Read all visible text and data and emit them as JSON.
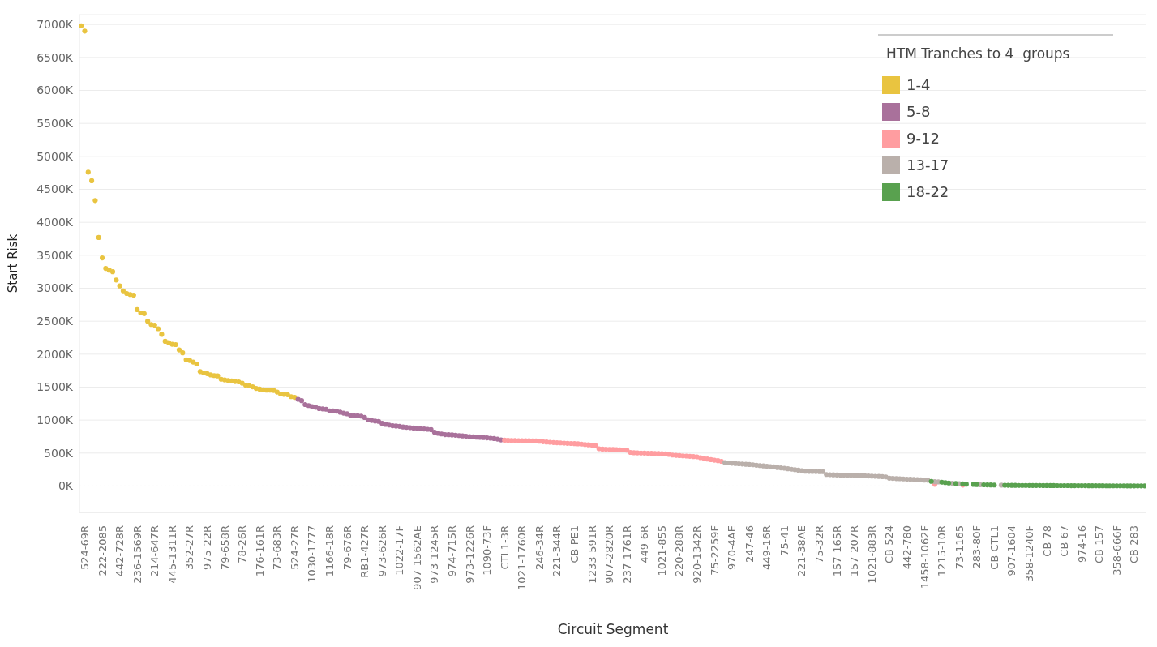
{
  "chart_data": {
    "type": "scatter",
    "xlabel": "Circuit Segment",
    "ylabel": "Start Risk",
    "legend_title": "HTM Tranches to 4  groups",
    "legend": "top right",
    "grid": "y",
    "marker": "circle",
    "ylim": [
      -400,
      7150
    ],
    "yticks": [
      {
        "value": 0,
        "label": "0K"
      },
      {
        "value": 500,
        "label": "500K"
      },
      {
        "value": 1000,
        "label": "1000K"
      },
      {
        "value": 1500,
        "label": "1500K"
      },
      {
        "value": 2000,
        "label": "2000K"
      },
      {
        "value": 2500,
        "label": "2500K"
      },
      {
        "value": 3000,
        "label": "3000K"
      },
      {
        "value": 3500,
        "label": "3500K"
      },
      {
        "value": 4000,
        "label": "4000K"
      },
      {
        "value": 4500,
        "label": "4500K"
      },
      {
        "value": 5000,
        "label": "5000K"
      },
      {
        "value": 5500,
        "label": "5500K"
      },
      {
        "value": 6000,
        "label": "6000K"
      },
      {
        "value": 6500,
        "label": "6500K"
      },
      {
        "value": 7000,
        "label": "7000K"
      }
    ],
    "ref_lines": [
      {
        "axis": "y",
        "value": 0,
        "color": "#bbbbbb",
        "line_style": "dotted"
      }
    ],
    "categories": [
      null,
      "524-69R",
      null,
      null,
      null,
      null,
      "222-2085",
      null,
      null,
      null,
      null,
      "442-728R",
      null,
      null,
      null,
      null,
      "236-1569R",
      null,
      null,
      null,
      null,
      "214-647R",
      null,
      null,
      null,
      null,
      "445-1311R",
      null,
      null,
      null,
      null,
      "352-27R",
      null,
      null,
      null,
      null,
      "975-22R",
      null,
      null,
      null,
      null,
      "79-658R",
      null,
      null,
      null,
      null,
      "78-26R",
      null,
      null,
      null,
      null,
      "176-161R",
      null,
      null,
      null,
      null,
      "73-683R",
      null,
      null,
      null,
      null,
      "524-27R",
      null,
      null,
      null,
      null,
      "1030-1777",
      null,
      null,
      null,
      null,
      "1166-18R",
      null,
      null,
      null,
      null,
      "79-676R",
      null,
      null,
      null,
      null,
      "RB1-427R",
      null,
      null,
      null,
      null,
      "973-626R",
      null,
      null,
      null,
      null,
      "1022-17F",
      null,
      null,
      null,
      null,
      "907-1562AE",
      null,
      null,
      null,
      null,
      "973-1245R",
      null,
      null,
      null,
      null,
      "974-715R",
      null,
      null,
      null,
      null,
      "973-1226R",
      null,
      null,
      null,
      null,
      "1090-73F",
      null,
      null,
      null,
      null,
      "CTL1-3R",
      null,
      null,
      null,
      null,
      "1021-1760R",
      null,
      null,
      null,
      null,
      "246-34R",
      null,
      null,
      null,
      null,
      "221-344R",
      null,
      null,
      null,
      null,
      "CB PE1",
      null,
      null,
      null,
      null,
      "1233-591R",
      null,
      null,
      null,
      null,
      "907-2820R",
      null,
      null,
      null,
      null,
      "237-1761R",
      null,
      null,
      null,
      null,
      "449-6R",
      null,
      null,
      null,
      null,
      "1021-855",
      null,
      null,
      null,
      null,
      "220-288R",
      null,
      null,
      null,
      null,
      "920-1342R",
      null,
      null,
      null,
      null,
      "75-2259F",
      null,
      null,
      null,
      null,
      "970-4AE",
      null,
      null,
      null,
      null,
      "247-46",
      null,
      null,
      null,
      null,
      "449-16R",
      null,
      null,
      null,
      null,
      "75-41",
      null,
      null,
      null,
      null,
      "221-38AE",
      null,
      null,
      null,
      null,
      "75-32R",
      null,
      null,
      null,
      null,
      "157-165R",
      null,
      null,
      null,
      null,
      "157-207R",
      null,
      null,
      null,
      null,
      "1021-883R",
      null,
      null,
      null,
      null,
      "CB 524",
      null,
      null,
      null,
      null,
      "442-780",
      null,
      null,
      null,
      null,
      "1458-1062F",
      null,
      null,
      null,
      null,
      "1215-10R",
      null,
      null,
      null,
      null,
      "73-1165",
      null,
      null,
      null,
      null,
      "283-80F",
      null,
      null,
      null,
      null,
      "CB CTL1",
      null,
      null,
      null,
      null,
      "907-1604",
      null,
      null,
      null,
      null,
      "358-1240F",
      null,
      null,
      null,
      null,
      "CB 78",
      null,
      null,
      null,
      null,
      "CB 67",
      null,
      null,
      null,
      null,
      "974-16",
      null,
      null,
      null,
      null,
      "CB 157",
      null,
      null,
      null,
      null,
      "358-666F",
      null,
      null,
      null,
      null,
      "CB 283",
      null,
      null,
      null
    ],
    "series": [
      {
        "name": "1-4",
        "color": "#e9c440",
        "values": [
          6980,
          6900,
          4760,
          4630,
          4330,
          3770,
          3460,
          3300,
          3275,
          3250,
          3125,
          3035,
          2960,
          2920,
          2905,
          2895,
          2675,
          2625,
          2615,
          2500,
          2450,
          2440,
          2385,
          2300,
          2195,
          2175,
          2150,
          2145,
          2065,
          2020,
          1915,
          1905,
          1880,
          1850,
          1735,
          1715,
          1705,
          1685,
          1675,
          1670,
          1620,
          1610,
          1600,
          1595,
          1585,
          1580,
          1560,
          1530,
          1520,
          1505,
          1480,
          1470,
          1460,
          1455,
          1455,
          1450,
          1425,
          1395,
          1390,
          1385,
          1355,
          1345,
          null,
          null,
          null,
          null,
          null,
          null,
          null,
          null,
          null,
          null,
          null,
          null,
          null,
          null,
          null,
          null,
          null,
          null,
          null,
          null,
          null,
          null,
          null,
          null,
          null,
          null,
          null,
          null,
          null,
          null,
          null,
          null,
          null,
          null,
          null,
          null,
          null,
          null,
          null,
          null,
          null,
          null,
          null,
          null,
          null,
          null,
          null,
          null,
          null,
          null,
          null,
          null,
          null,
          null,
          null,
          null,
          null,
          null,
          null,
          null,
          null,
          null,
          null,
          null,
          null,
          null,
          null,
          null,
          null,
          null,
          null,
          null,
          null,
          null,
          null,
          null,
          null,
          null,
          null,
          null,
          null,
          null,
          null,
          null,
          null,
          null,
          null,
          null,
          null,
          null,
          null,
          null,
          null,
          null,
          null,
          null,
          null,
          null,
          null,
          null,
          null,
          null,
          null,
          null,
          null,
          null,
          null,
          null,
          null,
          null,
          null,
          null,
          null,
          null,
          null,
          null,
          null,
          null,
          null,
          null,
          null,
          null,
          null,
          null,
          null,
          null,
          null,
          null,
          null,
          null,
          null,
          null,
          null,
          null,
          null,
          null,
          null,
          null,
          null,
          null,
          null,
          null,
          null,
          null,
          null,
          null,
          null,
          null,
          null,
          null,
          null,
          null,
          null,
          null,
          null,
          null,
          null,
          null,
          null,
          null,
          null,
          null,
          null,
          null,
          null,
          null,
          null,
          null,
          null,
          null,
          null,
          null,
          null,
          null,
          null,
          null,
          null,
          null,
          null,
          null,
          null,
          null,
          null,
          null,
          null,
          null,
          null,
          null,
          null,
          null,
          null,
          null,
          null,
          null,
          null,
          null,
          null,
          null,
          null,
          null,
          null,
          null,
          null,
          null,
          null,
          null,
          null,
          null,
          null,
          null,
          null,
          null,
          null,
          null,
          null,
          null,
          null,
          null,
          null,
          null,
          null,
          null,
          null,
          null,
          null,
          null,
          null,
          null,
          null,
          null,
          null,
          null,
          null,
          null,
          null,
          null,
          null,
          null,
          null,
          null,
          null,
          null,
          null
        ]
      },
      {
        "name": "5-8",
        "color": "#a9719b",
        "values": [
          null,
          null,
          null,
          null,
          null,
          null,
          null,
          null,
          null,
          null,
          null,
          null,
          null,
          null,
          null,
          null,
          null,
          null,
          null,
          null,
          null,
          null,
          null,
          null,
          null,
          null,
          null,
          null,
          null,
          null,
          null,
          null,
          null,
          null,
          null,
          null,
          null,
          null,
          null,
          null,
          null,
          null,
          null,
          null,
          null,
          null,
          null,
          null,
          null,
          null,
          null,
          null,
          null,
          null,
          null,
          null,
          null,
          null,
          null,
          null,
          null,
          null,
          1315,
          1295,
          1235,
          1220,
          1205,
          1195,
          1175,
          1170,
          1165,
          1140,
          1140,
          1135,
          1120,
          1105,
          1095,
          1070,
          1065,
          1065,
          1060,
          1040,
          1005,
          995,
          985,
          980,
          950,
          935,
          925,
          915,
          910,
          905,
          895,
          890,
          885,
          880,
          875,
          870,
          865,
          860,
          855,
          815,
          800,
          790,
          780,
          778,
          775,
          770,
          765,
          760,
          755,
          750,
          745,
          742,
          738,
          735,
          730,
          725,
          720,
          712,
          700,
          null,
          null,
          null,
          null,
          null,
          null,
          null,
          null,
          null,
          null,
          null,
          null,
          null,
          null,
          null,
          null,
          null,
          null,
          null,
          null,
          null,
          null,
          null,
          null,
          null,
          null,
          null,
          null,
          null,
          null,
          null,
          null,
          null,
          null,
          null,
          null,
          null,
          null,
          null,
          null,
          null,
          null,
          null,
          null,
          null,
          null,
          null,
          null,
          null,
          null,
          null,
          null,
          null,
          null,
          null,
          null,
          null,
          null,
          null,
          null,
          null,
          null,
          null,
          null,
          null,
          null,
          null,
          null,
          null,
          null,
          null,
          null,
          null,
          null,
          null,
          null,
          null,
          null,
          null,
          null,
          null,
          null,
          null,
          null,
          null,
          null,
          null,
          null,
          null,
          null,
          null,
          null,
          null,
          null,
          null,
          null,
          null,
          null,
          null,
          null,
          null,
          null,
          null,
          null,
          null,
          null,
          null,
          null,
          null,
          null,
          null,
          null,
          null,
          null,
          null,
          null,
          null,
          null,
          null,
          null,
          null,
          null,
          null,
          null,
          null,
          null,
          null,
          null,
          null,
          null,
          null,
          null,
          null,
          null,
          null,
          null,
          null,
          null,
          null,
          null,
          null,
          null,
          null,
          null,
          null,
          null,
          null,
          null,
          null,
          null,
          null,
          null,
          null,
          null,
          null,
          null,
          null,
          null,
          null,
          null,
          null,
          null,
          null,
          null,
          null,
          null,
          null,
          null,
          null,
          null,
          null,
          null,
          null,
          null,
          null,
          null,
          null,
          null,
          null,
          null,
          null,
          null,
          null,
          null
        ]
      },
      {
        "name": "9-12",
        "color": "#ff9da0",
        "values": [
          null,
          null,
          null,
          null,
          null,
          null,
          null,
          null,
          null,
          null,
          null,
          null,
          null,
          null,
          null,
          null,
          null,
          null,
          null,
          null,
          null,
          null,
          null,
          null,
          null,
          null,
          null,
          null,
          null,
          null,
          null,
          null,
          null,
          null,
          null,
          null,
          null,
          null,
          null,
          null,
          null,
          null,
          null,
          null,
          null,
          null,
          null,
          null,
          null,
          null,
          null,
          null,
          null,
          null,
          null,
          null,
          null,
          null,
          null,
          null,
          null,
          null,
          null,
          null,
          null,
          null,
          null,
          null,
          null,
          null,
          null,
          null,
          null,
          null,
          null,
          null,
          null,
          null,
          null,
          null,
          null,
          null,
          null,
          null,
          null,
          null,
          null,
          null,
          null,
          null,
          null,
          null,
          null,
          null,
          null,
          null,
          null,
          null,
          null,
          null,
          null,
          null,
          null,
          null,
          null,
          null,
          null,
          null,
          null,
          null,
          null,
          null,
          null,
          null,
          null,
          null,
          null,
          null,
          null,
          null,
          null,
          695,
          692,
          690,
          690,
          688,
          688,
          686,
          686,
          685,
          684,
          680,
          672,
          668,
          664,
          660,
          657,
          654,
          650,
          647,
          645,
          643,
          640,
          636,
          630,
          625,
          620,
          612,
          565,
          560,
          558,
          556,
          554,
          552,
          550,
          547,
          544,
          510,
          505,
          503,
          501,
          500,
          498,
          496,
          494,
          492,
          490,
          486,
          480,
          470,
          465,
          462,
          458,
          455,
          450,
          446,
          442,
          430,
          420,
          410,
          400,
          392,
          385,
          375,
          null,
          null,
          null,
          null,
          null,
          null,
          null,
          null,
          null,
          null,
          null,
          null,
          null,
          null,
          null,
          null,
          null,
          null,
          null,
          null,
          null,
          null,
          null,
          null,
          null,
          null,
          null,
          null,
          null,
          null,
          null,
          null,
          null,
          null,
          null,
          null,
          null,
          null,
          null,
          null,
          null,
          null,
          null,
          null,
          null,
          null,
          null,
          null,
          null,
          null,
          null,
          null,
          null,
          null,
          null,
          null,
          null,
          null,
          null,
          null,
          26,
          null,
          null,
          null,
          null,
          null,
          null,
          null,
          14,
          null,
          null,
          null,
          null,
          null,
          null,
          null,
          null,
          null,
          null,
          null,
          null,
          null,
          null,
          null,
          null,
          null,
          null,
          null,
          null,
          null,
          null,
          null,
          null,
          null,
          null,
          null,
          null,
          null,
          null,
          null,
          null,
          null,
          null,
          null,
          null,
          null,
          null,
          null,
          null,
          null,
          null,
          null,
          null,
          null,
          null,
          null,
          null,
          null,
          null,
          null,
          null
        ]
      },
      {
        "name": "13-17",
        "color": "#bab0ab",
        "values": [
          null,
          null,
          null,
          null,
          null,
          null,
          null,
          null,
          null,
          null,
          null,
          null,
          null,
          null,
          null,
          null,
          null,
          null,
          null,
          null,
          null,
          null,
          null,
          null,
          null,
          null,
          null,
          null,
          null,
          null,
          null,
          null,
          null,
          null,
          null,
          null,
          null,
          null,
          null,
          null,
          null,
          null,
          null,
          null,
          null,
          null,
          null,
          null,
          null,
          null,
          null,
          null,
          null,
          null,
          null,
          null,
          null,
          null,
          null,
          null,
          null,
          null,
          null,
          null,
          null,
          null,
          null,
          null,
          null,
          null,
          null,
          null,
          null,
          null,
          null,
          null,
          null,
          null,
          null,
          null,
          null,
          null,
          null,
          null,
          null,
          null,
          null,
          null,
          null,
          null,
          null,
          null,
          null,
          null,
          null,
          null,
          null,
          null,
          null,
          null,
          null,
          null,
          null,
          null,
          null,
          null,
          null,
          null,
          null,
          null,
          null,
          null,
          null,
          null,
          null,
          null,
          null,
          null,
          null,
          null,
          null,
          null,
          null,
          null,
          null,
          null,
          null,
          null,
          null,
          null,
          null,
          null,
          null,
          null,
          null,
          null,
          null,
          null,
          null,
          null,
          null,
          null,
          null,
          null,
          null,
          null,
          null,
          null,
          null,
          null,
          null,
          null,
          null,
          null,
          null,
          null,
          null,
          null,
          null,
          null,
          null,
          null,
          null,
          null,
          null,
          null,
          null,
          null,
          null,
          null,
          null,
          null,
          null,
          null,
          null,
          null,
          null,
          null,
          null,
          null,
          null,
          null,
          null,
          null,
          355,
          350,
          346,
          342,
          338,
          334,
          330,
          326,
          322,
          315,
          310,
          305,
          300,
          295,
          290,
          280,
          275,
          270,
          262,
          255,
          248,
          240,
          232,
          225,
          222,
          221,
          220,
          219,
          218,
          175,
          172,
          170,
          168,
          166,
          165,
          163,
          162,
          160,
          158,
          157,
          155,
          152,
          150,
          147,
          145,
          142,
          138,
          118,
          115,
          112,
          110,
          107,
          104,
          102,
          100,
          96,
          93,
          90,
          88,
          null,
          66,
          62,
          null,
          null,
          null,
          42,
          null,
          34,
          null,
          null,
          null,
          null,
          null,
          19,
          null,
          null,
          null,
          null,
          null,
          13,
          null,
          null,
          null,
          null,
          null,
          null,
          null,
          null,
          null,
          null,
          null,
          null,
          null,
          null,
          null,
          null,
          null,
          null,
          null,
          null,
          null,
          null,
          null,
          null,
          null,
          null,
          null,
          null,
          null,
          null,
          null,
          null,
          null,
          null,
          null,
          null,
          null,
          null,
          null,
          null,
          null
        ]
      },
      {
        "name": "18-22",
        "color": "#59a14f",
        "values": [
          null,
          null,
          null,
          null,
          null,
          null,
          null,
          null,
          null,
          null,
          null,
          null,
          null,
          null,
          null,
          null,
          null,
          null,
          null,
          null,
          null,
          null,
          null,
          null,
          null,
          null,
          null,
          null,
          null,
          null,
          null,
          null,
          null,
          null,
          null,
          null,
          null,
          null,
          null,
          null,
          null,
          null,
          null,
          null,
          null,
          null,
          null,
          null,
          null,
          null,
          null,
          null,
          null,
          null,
          null,
          null,
          null,
          null,
          null,
          null,
          null,
          null,
          null,
          null,
          null,
          null,
          null,
          null,
          null,
          null,
          null,
          null,
          null,
          null,
          null,
          null,
          null,
          null,
          null,
          null,
          null,
          null,
          null,
          null,
          null,
          null,
          null,
          null,
          null,
          null,
          null,
          null,
          null,
          null,
          null,
          null,
          null,
          null,
          null,
          null,
          null,
          null,
          null,
          null,
          null,
          null,
          null,
          null,
          null,
          null,
          null,
          null,
          null,
          null,
          null,
          null,
          null,
          null,
          null,
          null,
          null,
          null,
          null,
          null,
          null,
          null,
          null,
          null,
          null,
          null,
          null,
          null,
          null,
          null,
          null,
          null,
          null,
          null,
          null,
          null,
          null,
          null,
          null,
          null,
          null,
          null,
          null,
          null,
          null,
          null,
          null,
          null,
          null,
          null,
          null,
          null,
          null,
          null,
          null,
          null,
          null,
          null,
          null,
          null,
          null,
          null,
          null,
          null,
          null,
          null,
          null,
          null,
          null,
          null,
          null,
          null,
          null,
          null,
          null,
          null,
          null,
          null,
          null,
          null,
          null,
          null,
          null,
          null,
          null,
          null,
          null,
          null,
          null,
          null,
          null,
          null,
          null,
          null,
          null,
          null,
          null,
          null,
          null,
          null,
          null,
          null,
          null,
          null,
          null,
          null,
          null,
          null,
          null,
          null,
          null,
          null,
          null,
          null,
          null,
          null,
          null,
          null,
          null,
          null,
          null,
          null,
          null,
          null,
          null,
          null,
          null,
          null,
          null,
          null,
          null,
          null,
          null,
          null,
          null,
          null,
          null,
          null,
          null,
          70,
          null,
          null,
          58,
          52,
          46,
          null,
          38,
          null,
          31,
          28,
          null,
          24,
          22,
          null,
          18,
          17,
          16,
          15,
          null,
          null,
          12,
          11,
          10,
          10,
          9,
          9,
          9,
          8,
          8,
          8,
          8,
          7,
          7,
          7,
          7,
          6,
          6,
          6,
          6,
          5,
          5,
          5,
          5,
          5,
          4,
          4,
          4,
          4,
          4,
          3,
          3,
          3,
          3,
          3,
          3,
          2,
          2,
          2,
          2,
          2,
          2
        ]
      }
    ]
  }
}
